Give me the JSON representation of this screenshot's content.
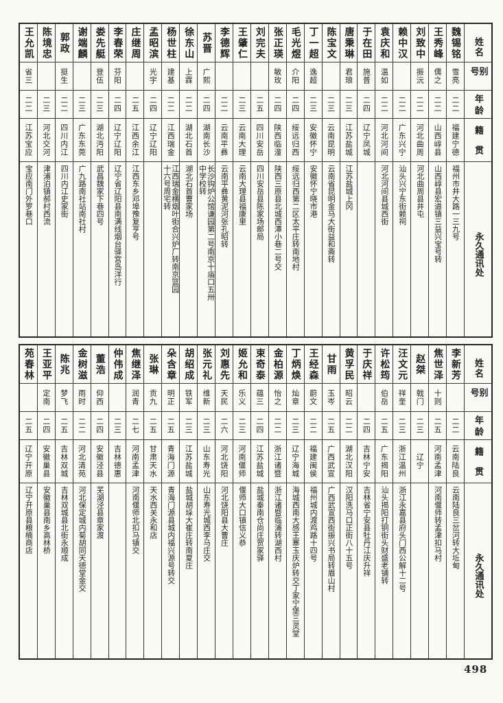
{
  "page": {
    "number": "498",
    "column_headers": {
      "name": "姓名",
      "alias": "别号",
      "age": "年龄",
      "origin": "籍贯",
      "address": "永久通讯处"
    }
  },
  "sections": [
    {
      "entries": [
        {
          "name": "魏锡铭",
          "alias": "雪亮",
          "age": "二二",
          "origin": "福建宁德",
          "address": "福州市井大路一三九号"
        },
        {
          "name": "王秀峰",
          "alias": "儒之",
          "age": "二二",
          "origin": "山西崞县",
          "address": "山西崞县宏道镇三益兴宝号转"
        },
        {
          "name": "刘致中",
          "alias": "振沅",
          "age": "二二",
          "origin": "河北曲周",
          "address": "河北曲周县井屯"
        },
        {
          "name": "赖中汉",
          "alias": "",
          "age": "二二",
          "origin": "广东兴宁",
          "address": "汕头兴宁东街赖祠"
        },
        {
          "name": "袁庆和",
          "alias": "温如",
          "age": "二二",
          "origin": "河北河间",
          "address": "河北河间县城西街"
        },
        {
          "name": "于在田",
          "alias": "施普",
          "age": "二四",
          "origin": "辽宁凤城",
          "address": ""
        },
        {
          "name": "唐秉琳",
          "alias": "君琅",
          "age": "二三",
          "origin": "江苏盐城",
          "address": "江苏盐城上冈"
        },
        {
          "name": "陈宝文",
          "alias": "",
          "age": "二三",
          "origin": "云南昆明",
          "address": "云南省昆明金马大街益和斋转"
        },
        {
          "name": "丁一超",
          "alias": "逸超",
          "age": "二三",
          "origin": "安徽怀宁",
          "address": "安徽怀宁晓市港"
        },
        {
          "name": "毛光煜",
          "alias": "介阳",
          "age": "二四",
          "origin": "绥远归西",
          "address": "绥远归西第二区太平庄转南地村"
        },
        {
          "name": "张正瑛",
          "alias": "敏玫",
          "age": "二四",
          "origin": "陕西临潼",
          "address": "陕西三原县北城西潭小巷二号交"
        },
        {
          "name": "刘完夫",
          "alias": "",
          "age": "二五",
          "origin": "四川安岳",
          "address": "四川安岳县陈家场邮局"
        },
        {
          "name": "王肇仁",
          "alias": "",
          "age": "二三",
          "origin": "云南大理",
          "address": "云南大理县福康里"
        },
        {
          "name": "李德辉",
          "alias": "",
          "age": "二二",
          "origin": "云南平彝",
          "address": "云南平彝黄泥河张孔昭转"
        },
        {
          "name": "苏晋",
          "alias": "广熙",
          "age": "二四",
          "origin": "湖南长沙",
          "address": "长沙钩炉公馆谦园第二号南京十庙口五卅\n中学校转"
        },
        {
          "name": "徐东山",
          "alias": "上霖",
          "age": "二二",
          "origin": "湖北石首",
          "address": "湖北石首曹家场"
        },
        {
          "name": "杨世柱",
          "alias": "建基",
          "age": "二二",
          "origin": "江西瑞金",
          "address": "江西瑞金横烟叶街合兴炉厂转南京篮园\n十六号周宅转"
        },
        {
          "name": "孟昭滨",
          "alias": "光宇",
          "age": "二四",
          "origin": "辽宁辽阳",
          "address": ""
        },
        {
          "name": "庄继周",
          "alias": "",
          "age": "二五",
          "origin": "江西余江",
          "address": "江西东乡邓埠豫复亨号"
        },
        {
          "name": "李春荣",
          "alias": "芬阳",
          "age": "二四",
          "origin": "辽宁辽阳",
          "address": "辽宁省辽阳县南满线烟台驿宫岛洋行"
        },
        {
          "name": "娄先艇",
          "alias": "登伍",
          "age": "二三",
          "origin": "湖北沔阳",
          "address": "武昌魏家下巷四号"
        },
        {
          "name": "谢端麟",
          "alias": "",
          "age": "二三",
          "origin": "广东东莞",
          "address": "广九路南社站南社村"
        },
        {
          "name": "郭政",
          "alias": "挺生",
          "age": "二二",
          "origin": "四川内江",
          "address": "四川内江史家街"
        },
        {
          "name": "陈境忠",
          "alias": "",
          "age": "二三",
          "origin": "河北交河",
          "address": "津浦泊镇郝村西流"
        },
        {
          "name": "王允凯",
          "alias": "省三",
          "age": "二二",
          "origin": "江苏宝应",
          "address": "宝应南门外罗巷口"
        }
      ]
    },
    {
      "entries": [
        {
          "name": "李新芳",
          "alias": "",
          "age": "二二",
          "origin": "云南陆良",
          "address": "云南陆良三岔河转大坵甸"
        },
        {
          "name": "焦世泽",
          "alias": "十则",
          "age": "二五",
          "origin": "河南孟津",
          "address": "河南偃师转孟津扣马村"
        },
        {
          "name": "赵桀",
          "alias": "戟门",
          "age": "二三",
          "origin": "辽宁",
          "address": ""
        },
        {
          "name": "汪文元",
          "alias": "祥奎",
          "age": "二三",
          "origin": "浙江温州",
          "address": "浙江永嘉县府头门西公解十二号"
        },
        {
          "name": "许松筠",
          "alias": "伯岳",
          "age": "二五",
          "origin": "广东揭阳",
          "address": "汕头揭阳打铜街头财盛老铺转"
        },
        {
          "name": "于庆祥",
          "alias": "",
          "age": "二四",
          "origin": "吉林宁安",
          "address": "吉林省宁安县牡丹江庆升祥"
        },
        {
          "name": "黄孚民",
          "alias": "昭云",
          "age": "二二",
          "origin": "湖北汉阳",
          "address": "汉阳洗马口正街八十五号"
        },
        {
          "name": "甘雨",
          "alias": "玉岑",
          "age": "二五",
          "origin": "广西武宣",
          "address": "广西武宣西街振兴书局转眉山村"
        },
        {
          "name": "王经森",
          "alias": "蔚文",
          "age": "二二",
          "origin": "福建闽侯",
          "address": "福州城内渡鸡路十四号"
        },
        {
          "name": "丁炳焕",
          "alias": "灿章",
          "age": "二三",
          "origin": "辽宁海城",
          "address": "海城西南大感王寨玉庆炉转交丁家宁堡三灵堂"
        },
        {
          "name": "金柏源",
          "alias": "怡之",
          "age": "二二",
          "origin": "浙江诸暨",
          "address": "浙江诸暨临浦转湖西村"
        },
        {
          "name": "束奇泰",
          "alias": "蕴三",
          "age": "二四",
          "origin": "江苏盐城",
          "address": "盐城秦南仓尚庄贺家驿"
        },
        {
          "name": "姬允和",
          "alias": "乐义",
          "age": "二三",
          "origin": "河南偃师",
          "address": "偃师大口镇信义恭"
        },
        {
          "name": "刘惠先",
          "alias": "天民",
          "age": "二六",
          "origin": "河北饶阳",
          "address": "河北饶阳县大曹庄"
        },
        {
          "name": "张元礼",
          "alias": "维新",
          "age": "二三",
          "origin": "山东寿光",
          "address": "山东寿光城西李马庄交"
        },
        {
          "name": "胡绍成",
          "alias": "铁军",
          "age": "二三",
          "origin": "江苏盐城",
          "address": "盐城胡垛大崔庄转南夏庄"
        },
        {
          "name": "朵含章",
          "alias": "明正",
          "age": "二五",
          "origin": "青海门源",
          "address": "青海门源县城内福兴源号转交"
        },
        {
          "name": "张琳",
          "alias": "贡九",
          "age": "二五",
          "origin": "甘肃天水",
          "address": "天水西关永和店"
        },
        {
          "name": "焦继泽",
          "alias": "润青",
          "age": "二七",
          "origin": "河南孟津",
          "address": "河南偃师北扣马镇交"
        },
        {
          "name": "仲伟成",
          "alias": "",
          "age": "二三",
          "origin": "吉林德惠",
          "address": ""
        },
        {
          "name": "董浩",
          "alias": "仰西",
          "age": "二四",
          "origin": "安徽泾县",
          "address": "芜湖泾县章家渡"
        },
        {
          "name": "金树滋",
          "alias": "雨时",
          "age": "二二",
          "origin": "河北清苑",
          "address": "河北保定城内菊胡同天德堂金交"
        },
        {
          "name": "陈兆",
          "alias": "梦飞",
          "age": "二五",
          "origin": "吉林双城",
          "address": "吉林双城县北街永顺成"
        },
        {
          "name": "王亚平",
          "alias": "定南",
          "age": "二四",
          "origin": "安徽巢县",
          "address": "安徽巢县南乡高林桥"
        },
        {
          "name": "苑春林",
          "alias": "",
          "age": "二五",
          "origin": "辽宁开原",
          "address": "辽宁开原县粮楠商店"
        }
      ]
    }
  ]
}
